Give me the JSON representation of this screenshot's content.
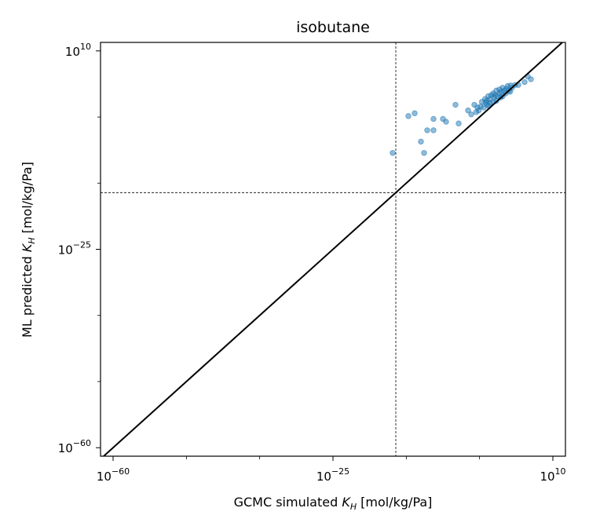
{
  "chart_data": {
    "type": "scatter",
    "title": "isobutane",
    "xlabel": {
      "prefix": "GCMC simulated ",
      "var": "K",
      "sub": "H",
      "suffix": " [mol/kg/Pa]"
    },
    "ylabel": {
      "prefix": "ML predicted ",
      "var": "K",
      "sub": "H",
      "suffix": " [mol/kg/Pa]"
    },
    "scale": "log",
    "xlim_exp": [
      -62,
      12
    ],
    "ylim_exp": [
      -61.5,
      11.5
    ],
    "major_tick_exp": [
      -60,
      -25,
      10
    ],
    "minor_tick_exp": [
      -48.33,
      -36.67,
      -13.33,
      -1.67
    ],
    "tick_base": "10",
    "tick_exponents": [
      "−60",
      "−25",
      "10"
    ],
    "reference_lines": {
      "vertical_exp": -15,
      "horizontal_exp": -15,
      "style": "dashed"
    },
    "diagonal": "y = x",
    "point_color": "#1f77b4",
    "points_exp": [
      [
        -15.5,
        -8.0
      ],
      [
        -13.0,
        -1.5
      ],
      [
        -12.0,
        -1.0
      ],
      [
        -11.0,
        -6.0
      ],
      [
        -10.5,
        -8.0
      ],
      [
        -10.0,
        -4.0
      ],
      [
        -9.0,
        -2.0
      ],
      [
        -9.0,
        -4.0
      ],
      [
        -7.5,
        -2.0
      ],
      [
        -7.0,
        -2.5
      ],
      [
        -5.5,
        0.5
      ],
      [
        -5.0,
        -2.8
      ],
      [
        -3.5,
        -0.5
      ],
      [
        -3.0,
        -1.2
      ],
      [
        -2.5,
        0.5
      ],
      [
        -2.0,
        0.0
      ],
      [
        -1.8,
        -0.5
      ],
      [
        -1.5,
        0.2
      ],
      [
        -1.3,
        1.0
      ],
      [
        -1.0,
        0.0
      ],
      [
        -0.8,
        1.5
      ],
      [
        -0.5,
        0.5
      ],
      [
        -0.5,
        1.2
      ],
      [
        -0.3,
        2.0
      ],
      [
        0.0,
        0.8
      ],
      [
        0.0,
        1.5
      ],
      [
        0.2,
        2.2
      ],
      [
        0.5,
        1.0
      ],
      [
        0.5,
        2.5
      ],
      [
        0.7,
        1.8
      ],
      [
        1.0,
        1.2
      ],
      [
        1.0,
        3.0
      ],
      [
        1.2,
        2.0
      ],
      [
        1.5,
        2.5
      ],
      [
        1.5,
        3.2
      ],
      [
        1.8,
        2.8
      ],
      [
        2.0,
        2.0
      ],
      [
        2.0,
        3.5
      ],
      [
        2.3,
        3.0
      ],
      [
        2.5,
        2.5
      ],
      [
        2.8,
        3.8
      ],
      [
        3.0,
        3.0
      ],
      [
        3.2,
        2.8
      ],
      [
        3.5,
        3.5
      ],
      [
        4.0,
        4.0
      ],
      [
        -0.2,
        0.3
      ],
      [
        0.8,
        2.2
      ],
      [
        1.7,
        1.8
      ],
      [
        -2.2,
        -0.8
      ],
      [
        2.6,
        3.3
      ],
      [
        3.3,
        3.9
      ],
      [
        -0.7,
        0.9
      ],
      [
        4.5,
        4.0
      ],
      [
        5.5,
        4.5
      ],
      [
        6.0,
        5.5
      ],
      [
        6.5,
        5.0
      ]
    ]
  }
}
